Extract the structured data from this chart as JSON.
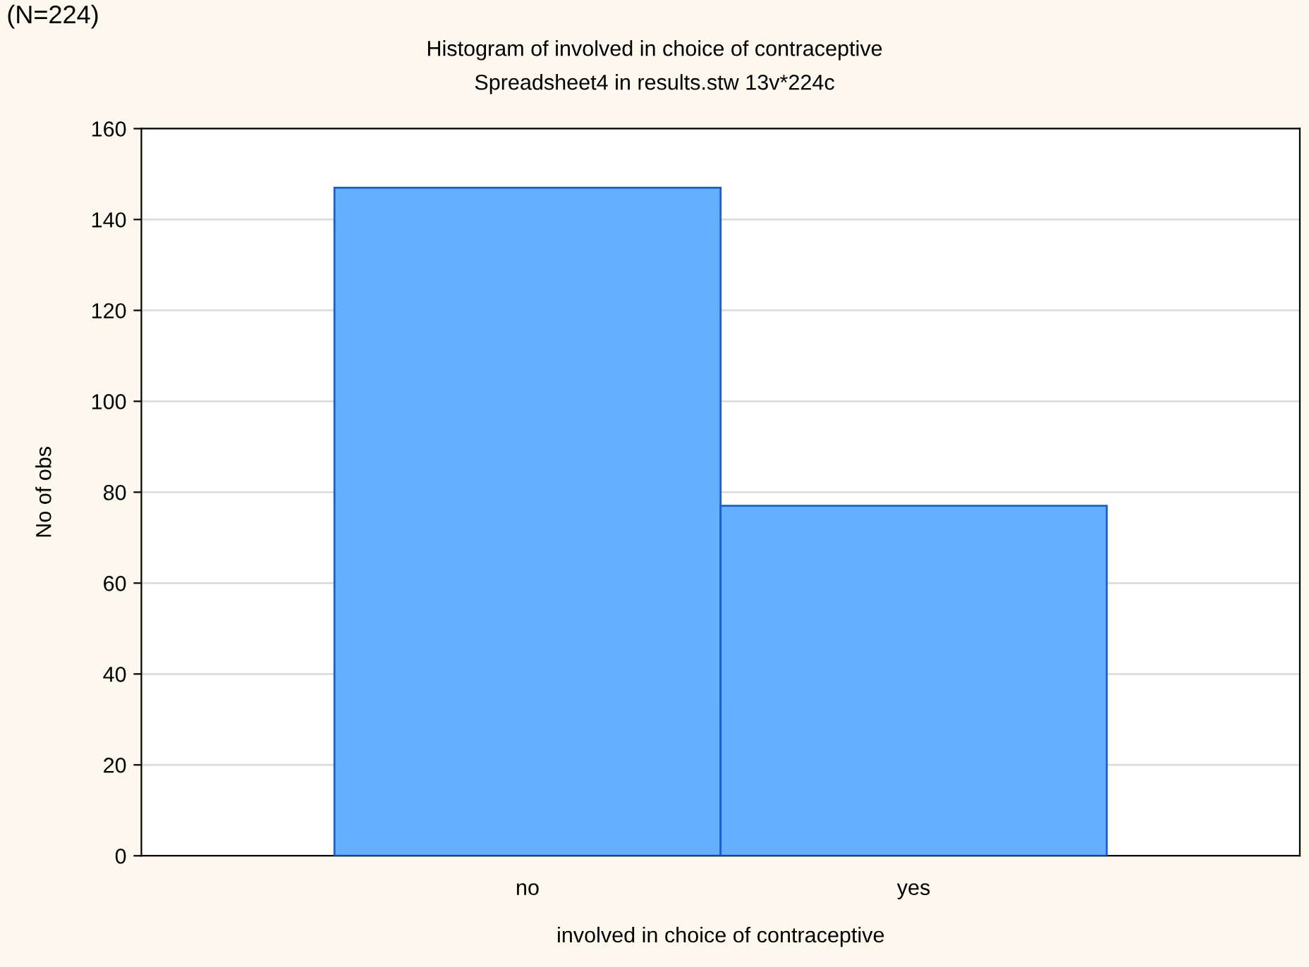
{
  "chart_data": {
    "type": "bar",
    "title": "Histogram of involved in choice of contraceptive",
    "subtitle": "Spreadsheet4 in results.stw 13v*224c",
    "xlabel": "involved in choice of contraceptive",
    "ylabel": "No of obs",
    "annotations": [
      "(N=224)"
    ],
    "categories": [
      "no",
      "yes"
    ],
    "values": [
      147,
      77
    ],
    "color": "#64b0ff",
    "ylim": [
      0,
      160
    ],
    "yticks": [
      0,
      20,
      40,
      60,
      80,
      100,
      120,
      140,
      160
    ],
    "grid": "y"
  }
}
